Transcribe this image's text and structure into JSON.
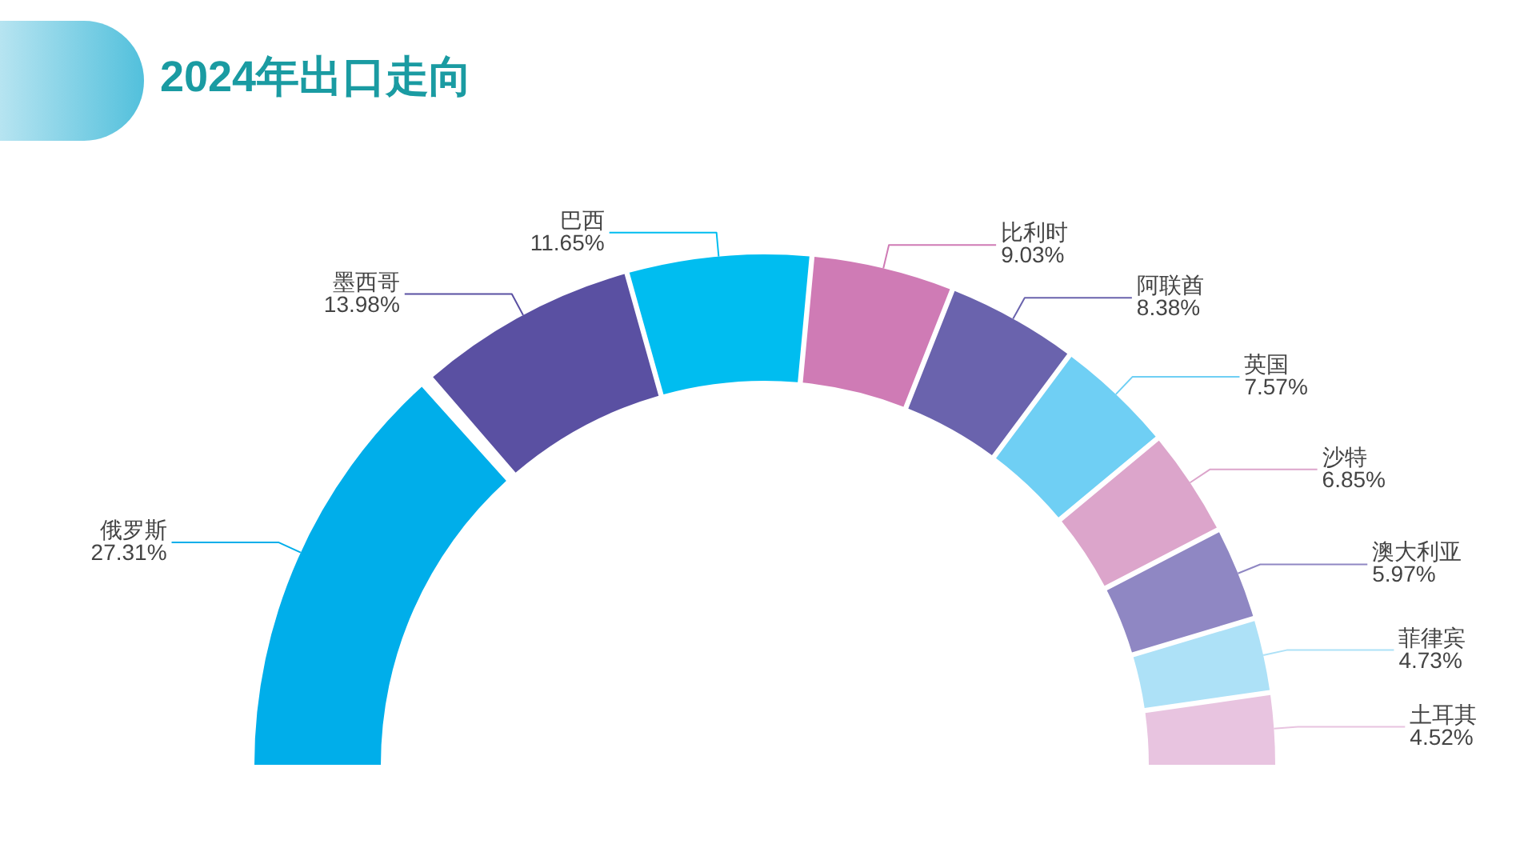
{
  "chart_data": {
    "type": "donut",
    "title": "2024年出口走向",
    "categories": [
      "俄罗斯",
      "墨西哥",
      "巴西",
      "比利时",
      "阿联酋",
      "英国",
      "沙特",
      "澳大利亚",
      "菲律宾",
      "土耳其"
    ],
    "values": [
      27.31,
      13.98,
      11.65,
      9.03,
      8.38,
      7.57,
      6.85,
      5.97,
      4.73,
      4.52
    ],
    "colors": [
      "#00aeea",
      "#5a50a2",
      "#00bdf0",
      "#cf7bb5",
      "#6a63ad",
      "#6fcff4",
      "#dca5cb",
      "#8f87c3",
      "#ade1f7",
      "#e8c4e0"
    ],
    "value_labels": [
      "27.31%",
      "13.98%",
      "11.65%",
      "9.03%",
      "8.38%",
      "7.57%",
      "6.85%",
      "5.97%",
      "4.73%",
      "4.52%"
    ]
  }
}
